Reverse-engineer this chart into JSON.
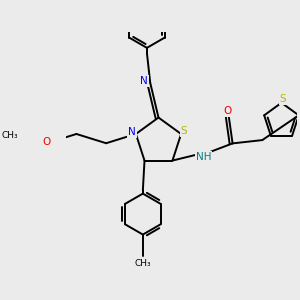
{
  "bg_color": "#ebebeb",
  "line_color": "#000000",
  "N_color": "#0000ee",
  "O_color": "#ee0000",
  "S_color": "#b8b800",
  "NH_color": "#008080",
  "bond_lw": 1.4,
  "figsize": [
    3.0,
    3.0
  ],
  "dpi": 100,
  "xlim": [
    -2.5,
    4.5
  ],
  "ylim": [
    -3.5,
    3.5
  ]
}
